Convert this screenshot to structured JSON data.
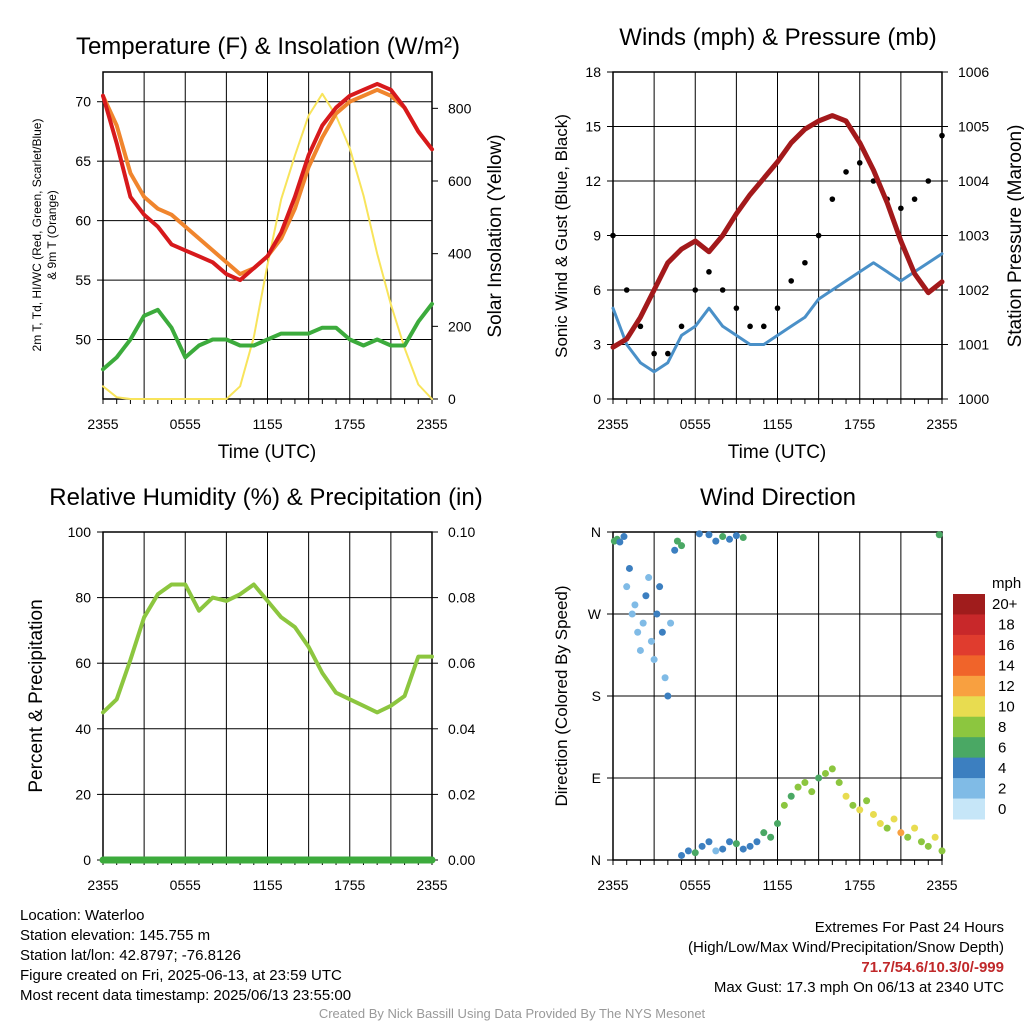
{
  "panels": {
    "temp": {
      "title": "Temperature (F) & Insolation (W/m²)",
      "ylabel_left_line1": "2m T, Td, HI/WC (Red, Green, Scarlet/Blue)",
      "ylabel_left_line2": "& 9m T (Orange)",
      "ylabel_right": "Solar Insolation (Yellow)",
      "xlabel": "Time (UTC)"
    },
    "wind": {
      "title": "Winds (mph) & Pressure (mb)",
      "ylabel_left": "Sonic Wind & Gust (Blue, Black)",
      "ylabel_right": "Station Pressure (Maroon)",
      "xlabel": "Time (UTC)"
    },
    "rh": {
      "title": "Relative Humidity (%) & Precipitation (in)",
      "ylabel_left": "Percent & Precipitation"
    },
    "dir": {
      "title": "Wind Direction",
      "ylabel_left": "Direction (Colored By Speed)",
      "colorbar_unit": "mph"
    }
  },
  "x_ticks": [
    "2355",
    "0555",
    "1155",
    "1755",
    "2355"
  ],
  "info_left": [
    "Location: Waterloo",
    "Station elevation: 145.755 m",
    "Station lat/lon: 42.8797; -76.8126",
    "Figure created on Fri, 2025-06-13, at 23:59 UTC",
    "Most recent data timestamp: 2025/06/13 23:55:00"
  ],
  "extremes": {
    "line1": "Extremes For Past 24 Hours",
    "line2": "(High/Low/Max Wind/Precipitation/Snow Depth)",
    "values": "71.7/54.6/10.3/0/-999",
    "gust": "Max Gust: 17.3 mph On 06/13 at 2340 UTC"
  },
  "credit": "Created By Nick Bassill Using Data Provided By The NYS Mesonet",
  "chart_data": [
    {
      "type": "line",
      "title": "Temperature (F) & Insolation (W/m²)",
      "xlabel": "Time (UTC)",
      "x_hours": [
        0,
        1,
        2,
        3,
        4,
        5,
        6,
        7,
        8,
        9,
        10,
        11,
        12,
        13,
        14,
        15,
        16,
        17,
        18,
        19,
        20,
        21,
        22,
        23,
        24
      ],
      "ylim_left": [
        45,
        72.5
      ],
      "yticks_left": [
        50,
        55,
        60,
        65,
        70
      ],
      "ylim_right": [
        0,
        900
      ],
      "yticks_right": [
        0,
        200,
        400,
        600,
        800
      ],
      "series": [
        {
          "name": "2m T",
          "color": "#d7191c",
          "axis": "left",
          "values": [
            70.5,
            66.5,
            62,
            60.5,
            59.5,
            58,
            57.5,
            57,
            56.5,
            55.5,
            55,
            56,
            57,
            59,
            62,
            65.5,
            68,
            69.5,
            70.5,
            71,
            71.5,
            71,
            69.5,
            67.5,
            66
          ]
        },
        {
          "name": "9m T",
          "color": "#f0852d",
          "axis": "left",
          "values": [
            70.5,
            68,
            64,
            62,
            61,
            60.5,
            59.5,
            58.5,
            57.5,
            56.5,
            55.5,
            56,
            57,
            58.5,
            61,
            64.5,
            67,
            69,
            70,
            70.5,
            71,
            70.5,
            69.5,
            67.5,
            66
          ]
        },
        {
          "name": "Td",
          "color": "#3cab3c",
          "axis": "left",
          "values": [
            47.5,
            48.5,
            50,
            52,
            52.5,
            51,
            48.5,
            49.5,
            50,
            50,
            49.5,
            49.5,
            50,
            50.5,
            50.5,
            50.5,
            51,
            51,
            50,
            49.5,
            50,
            49.5,
            49.5,
            51.5,
            53
          ]
        },
        {
          "name": "Solar Insolation",
          "color": "#f8e45b",
          "axis": "right",
          "values": [
            35,
            5,
            0,
            0,
            0,
            0,
            0,
            0,
            0,
            0,
            35,
            170,
            370,
            550,
            670,
            780,
            840,
            780,
            690,
            560,
            400,
            260,
            140,
            40,
            0
          ]
        }
      ]
    },
    {
      "type": "line",
      "title": "Winds (mph) & Pressure (mb)",
      "xlabel": "Time (UTC)",
      "x_hours": [
        0,
        1,
        2,
        3,
        4,
        5,
        6,
        7,
        8,
        9,
        10,
        11,
        12,
        13,
        14,
        15,
        16,
        17,
        18,
        19,
        20,
        21,
        22,
        23,
        24
      ],
      "ylim_left": [
        0,
        18
      ],
      "yticks_left": [
        0,
        3,
        6,
        9,
        12,
        15,
        18
      ],
      "ylim_right": [
        1000,
        1006
      ],
      "yticks_right": [
        1000,
        1001,
        1002,
        1003,
        1004,
        1005,
        1006
      ],
      "series": [
        {
          "name": "Sonic Wind",
          "color": "#4a90c8",
          "axis": "left",
          "values": [
            5,
            3,
            2,
            1.5,
            2,
            3.5,
            4,
            5,
            4,
            3.5,
            3,
            3,
            3.5,
            4,
            4.5,
            5.5,
            6,
            6.5,
            7,
            7.5,
            7,
            6.5,
            7,
            7.5,
            8
          ]
        },
        {
          "name": "Gust",
          "color": "#000000",
          "axis": "left",
          "style": "points",
          "values": [
            9,
            6,
            4,
            2.5,
            2.5,
            4,
            6,
            7,
            6,
            5,
            4,
            4,
            5,
            6.5,
            7.5,
            9,
            11,
            12.5,
            13,
            12,
            11,
            10.5,
            11,
            12,
            14.5
          ]
        },
        {
          "name": "Station Pressure",
          "color": "#a3191b",
          "axis": "right",
          "values": [
            1000.95,
            1001.1,
            1001.5,
            1002,
            1002.5,
            1002.75,
            1002.9,
            1002.7,
            1003,
            1003.4,
            1003.75,
            1004.05,
            1004.35,
            1004.7,
            1004.95,
            1005.1,
            1005.2,
            1005.1,
            1004.7,
            1004.2,
            1003.6,
            1002.9,
            1002.3,
            1001.95,
            1002.15
          ]
        }
      ]
    },
    {
      "type": "line",
      "title": "Relative Humidity (%) & Precipitation (in)",
      "x_hours": [
        0,
        1,
        2,
        3,
        4,
        5,
        6,
        7,
        8,
        9,
        10,
        11,
        12,
        13,
        14,
        15,
        16,
        17,
        18,
        19,
        20,
        21,
        22,
        23,
        24
      ],
      "ylim_left": [
        0,
        100
      ],
      "yticks_left": [
        0,
        20,
        40,
        60,
        80,
        100
      ],
      "ylim_right": [
        0,
        0.1
      ],
      "yticks_right": [
        "0.00",
        "0.02",
        "0.04",
        "0.06",
        "0.08",
        "0.10"
      ],
      "series": [
        {
          "name": "RH",
          "color": "#8cc63f",
          "axis": "left",
          "values": [
            45,
            49,
            61,
            74,
            81,
            84,
            84,
            76,
            80,
            79,
            81,
            84,
            79,
            74,
            71,
            65,
            57,
            51,
            49,
            47,
            45,
            47,
            50,
            62,
            62
          ]
        },
        {
          "name": "Precipitation",
          "color": "#3cab3c",
          "axis": "right",
          "values": [
            0,
            0,
            0,
            0,
            0,
            0,
            0,
            0,
            0,
            0,
            0,
            0,
            0,
            0,
            0,
            0,
            0,
            0,
            0,
            0,
            0,
            0,
            0,
            0,
            0
          ]
        }
      ]
    },
    {
      "type": "scatter",
      "title": "Wind Direction",
      "ylabel": "Direction (Colored By Speed)",
      "ytick_labels": [
        "N",
        "E",
        "S",
        "W",
        "N"
      ],
      "ylim_deg": [
        0,
        360
      ],
      "colorbar": {
        "unit": "mph",
        "labels": [
          "20+",
          "18",
          "16",
          "14",
          "12",
          "10",
          "8",
          "6",
          "4",
          "2",
          "0"
        ],
        "colors": [
          "#a01c1c",
          "#c8282a",
          "#e03c2e",
          "#f0642a",
          "#f8a040",
          "#e8dc50",
          "#8cc63f",
          "#4aa864",
          "#3c7fc0",
          "#80bbe6",
          "#c6e6f8"
        ]
      },
      "points_hour_deg_speed": [
        [
          0.1,
          350,
          6
        ],
        [
          0.3,
          352,
          5
        ],
        [
          0.5,
          349,
          4
        ],
        [
          0.8,
          355,
          3
        ],
        [
          1,
          300,
          2
        ],
        [
          1.2,
          320,
          3
        ],
        [
          1.4,
          270,
          2
        ],
        [
          1.6,
          280,
          1
        ],
        [
          1.8,
          250,
          2
        ],
        [
          2,
          230,
          1
        ],
        [
          2.2,
          260,
          2
        ],
        [
          2.4,
          290,
          3
        ],
        [
          2.6,
          310,
          2
        ],
        [
          2.8,
          240,
          1
        ],
        [
          3,
          220,
          2
        ],
        [
          3.2,
          270,
          3
        ],
        [
          3.4,
          300,
          4
        ],
        [
          3.6,
          250,
          3
        ],
        [
          3.8,
          200,
          2
        ],
        [
          4,
          180,
          3
        ],
        [
          4.2,
          260,
          2
        ],
        [
          4.5,
          340,
          4
        ],
        [
          4.7,
          350,
          5
        ],
        [
          5,
          345,
          6
        ],
        [
          5,
          5,
          4
        ],
        [
          5.5,
          10,
          3
        ],
        [
          6,
          8,
          5
        ],
        [
          6.5,
          15,
          4
        ],
        [
          7,
          20,
          3
        ],
        [
          7.5,
          10,
          2
        ],
        [
          8,
          12,
          4
        ],
        [
          8.5,
          20,
          3
        ],
        [
          9,
          18,
          5
        ],
        [
          9.5,
          12,
          4
        ],
        [
          10,
          15,
          3
        ],
        [
          6.3,
          358,
          4
        ],
        [
          7,
          357,
          3
        ],
        [
          7.5,
          350,
          4
        ],
        [
          8,
          355,
          5
        ],
        [
          8.5,
          352,
          3
        ],
        [
          9,
          356,
          4
        ],
        [
          9.5,
          354,
          5
        ],
        [
          10.5,
          20,
          4
        ],
        [
          11,
          30,
          5
        ],
        [
          11.5,
          25,
          6
        ],
        [
          12,
          40,
          6
        ],
        [
          12.5,
          60,
          7
        ],
        [
          13,
          70,
          6
        ],
        [
          13.5,
          80,
          7
        ],
        [
          14,
          85,
          8
        ],
        [
          14.5,
          75,
          7
        ],
        [
          15,
          90,
          6
        ],
        [
          15.5,
          95,
          8
        ],
        [
          16,
          100,
          7
        ],
        [
          16.5,
          85,
          8
        ],
        [
          17,
          70,
          9
        ],
        [
          17.5,
          60,
          8
        ],
        [
          18,
          55,
          9
        ],
        [
          18.5,
          65,
          8
        ],
        [
          19,
          50,
          10
        ],
        [
          19.5,
          40,
          9
        ],
        [
          20,
          35,
          8
        ],
        [
          20.5,
          45,
          9
        ],
        [
          21,
          30,
          11
        ],
        [
          21.5,
          25,
          8
        ],
        [
          22,
          35,
          9
        ],
        [
          22.5,
          20,
          8
        ],
        [
          23,
          15,
          7
        ],
        [
          23.5,
          25,
          9
        ],
        [
          24,
          10,
          8
        ],
        [
          23.8,
          357,
          6
        ]
      ]
    }
  ]
}
